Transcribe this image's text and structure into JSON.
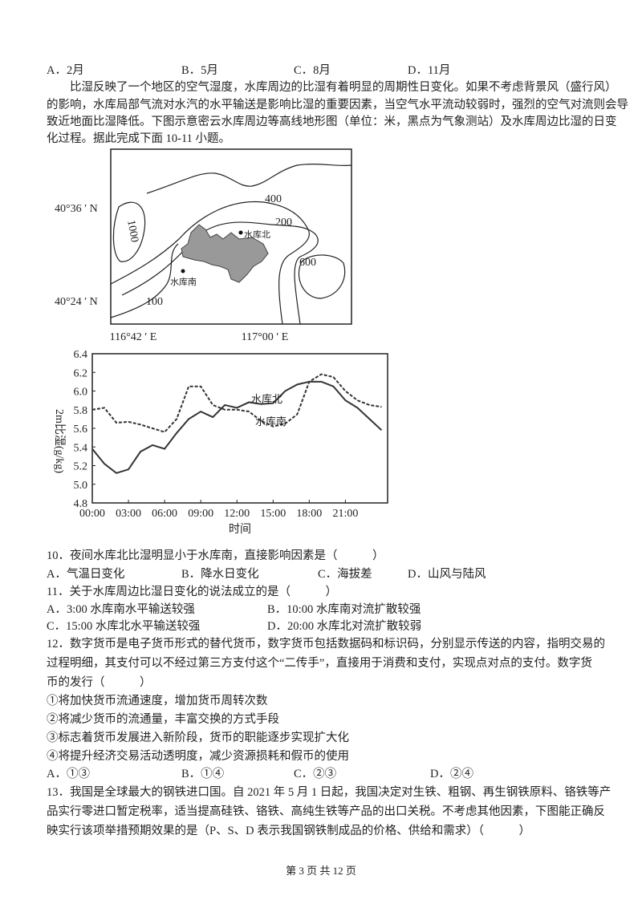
{
  "q9_options": [
    "A．2月",
    "B．5月",
    "C．8月",
    "D．11月"
  ],
  "intro": [
    "比湿反映了一个地区的空气湿度，水库周边的比湿有着明显的周期性日变化。如果不考虑背景风（盛行风）",
    "的影响，水库局部气流对水汽的水平输送是影响比湿的重要因素，当空气水平流动较弱时，强烈的空气对流则会导",
    "致近地面比湿降低。下图示意密云水库周边等高线地形图（单位：米，黑点为气象测站）及水库周边比湿的日变",
    "化过程。据此完成下面 10-11 小题。"
  ],
  "map": {
    "lat_labels": [
      "40°36 ′ N",
      "40°24 ′ N"
    ],
    "lon_labels": [
      "116°42 ′ E",
      "117°00 ′ E"
    ],
    "contour_labels": [
      "400",
      "200",
      "1000",
      "600",
      "100"
    ],
    "station_labels": [
      "水库北",
      "水库南"
    ]
  },
  "chart_data": {
    "type": "line",
    "x_label": "时间",
    "y_label": "2m比湿(g/kg)",
    "x": [
      0,
      1,
      2,
      3,
      4,
      5,
      6,
      7,
      8,
      9,
      10,
      11,
      12,
      13,
      14,
      15,
      16,
      17,
      18,
      19,
      20,
      21,
      22,
      23,
      24
    ],
    "xlim": [
      0,
      24.5
    ],
    "xticks": [
      {
        "value": 0,
        "label": "00:00"
      },
      {
        "value": 3,
        "label": "03:00"
      },
      {
        "value": 6,
        "label": "06:00"
      },
      {
        "value": 9,
        "label": "09:00"
      },
      {
        "value": 12,
        "label": "12:00"
      },
      {
        "value": 15,
        "label": "15:00"
      },
      {
        "value": 18,
        "label": "18:00"
      },
      {
        "value": 21,
        "label": "21:00"
      }
    ],
    "ylim": [
      4.8,
      6.4
    ],
    "yticks": [
      4.8,
      {
        "value": 5,
        "label": "5.0"
      },
      5.2,
      5.4,
      5.6,
      5.8,
      {
        "value": 6,
        "label": "6.0"
      },
      6.2,
      6.4
    ],
    "series": [
      {
        "name": "水库北",
        "color": "#333333",
        "style": "dashed",
        "values": [
          5.8,
          5.82,
          5.66,
          5.67,
          5.64,
          5.6,
          5.56,
          5.7,
          6.05,
          6.05,
          5.85,
          5.8,
          5.8,
          5.78,
          5.68,
          5.62,
          5.65,
          5.75,
          6.1,
          6.18,
          6.15,
          6.0,
          5.9,
          5.85,
          5.83
        ]
      },
      {
        "name": "水库南",
        "color": "#333333",
        "style": "solid",
        "values": [
          5.38,
          5.22,
          5.12,
          5.16,
          5.35,
          5.42,
          5.38,
          5.55,
          5.7,
          5.78,
          5.72,
          5.85,
          5.82,
          5.88,
          5.86,
          5.87,
          6.0,
          6.07,
          6.1,
          6.1,
          6.05,
          5.9,
          5.82,
          5.7,
          5.58
        ]
      }
    ]
  },
  "q10": {
    "stem": "10．夜间水库北比湿明显小于水库南，直接影响因素是（　　　）",
    "options": [
      "A．气温日变化",
      "B．降水日变化",
      "C．海拔差",
      "D．山风与陆风"
    ]
  },
  "q11": {
    "stem": "11．关于水库周边比湿日变化的说法成立的是（　　　）",
    "options": [
      "A．3:00 水库南水平输送较强",
      "B．10:00 水库南对流扩散较强",
      "C．15:00 水库北水平输送较强",
      "D．20:00 水库北对流扩散较弱"
    ]
  },
  "q12": {
    "stem": [
      "12．数字货币是电子货币形式的替代货币，数字货币包括数据码和标识码，分别显示传送的内容，指明交易的",
      "过程明细，其支付可以不经过第三方支付这个“二传手”，直接用于消费和支付，实现点对点的支付。数字货",
      "币的发行（　　　）"
    ],
    "items": [
      "①将加快货币流通速度，增加货币周转次数",
      "②将减少货币的流通量，丰富交换的方式手段",
      "③标志着货币发展进入新阶段，货币的职能逐步实现扩大化",
      "④将提升经济交易活动透明度，减少资源损耗和假币的使用"
    ],
    "options": [
      "A．①③",
      "B．①④",
      "C．②③",
      "D．②④"
    ]
  },
  "q13": {
    "stem": [
      "13．我国是全球最大的钢铁进口国。自 2021 年 5 月 1 日起，我国决定对生铁、粗钢、再生钢铁原料、铬铁等产",
      "品实行零进口暂定税率，适当提高硅铁、铬铁、高纯生铁等产品的出口关税。不考虑其他因素，下图能正确反",
      "映实行该项举措预期效果的是（P、S、D 表示我国钢铁制成品的价格、供给和需求）（　　　）"
    ]
  },
  "footer": "第 3 页 共 12 页"
}
